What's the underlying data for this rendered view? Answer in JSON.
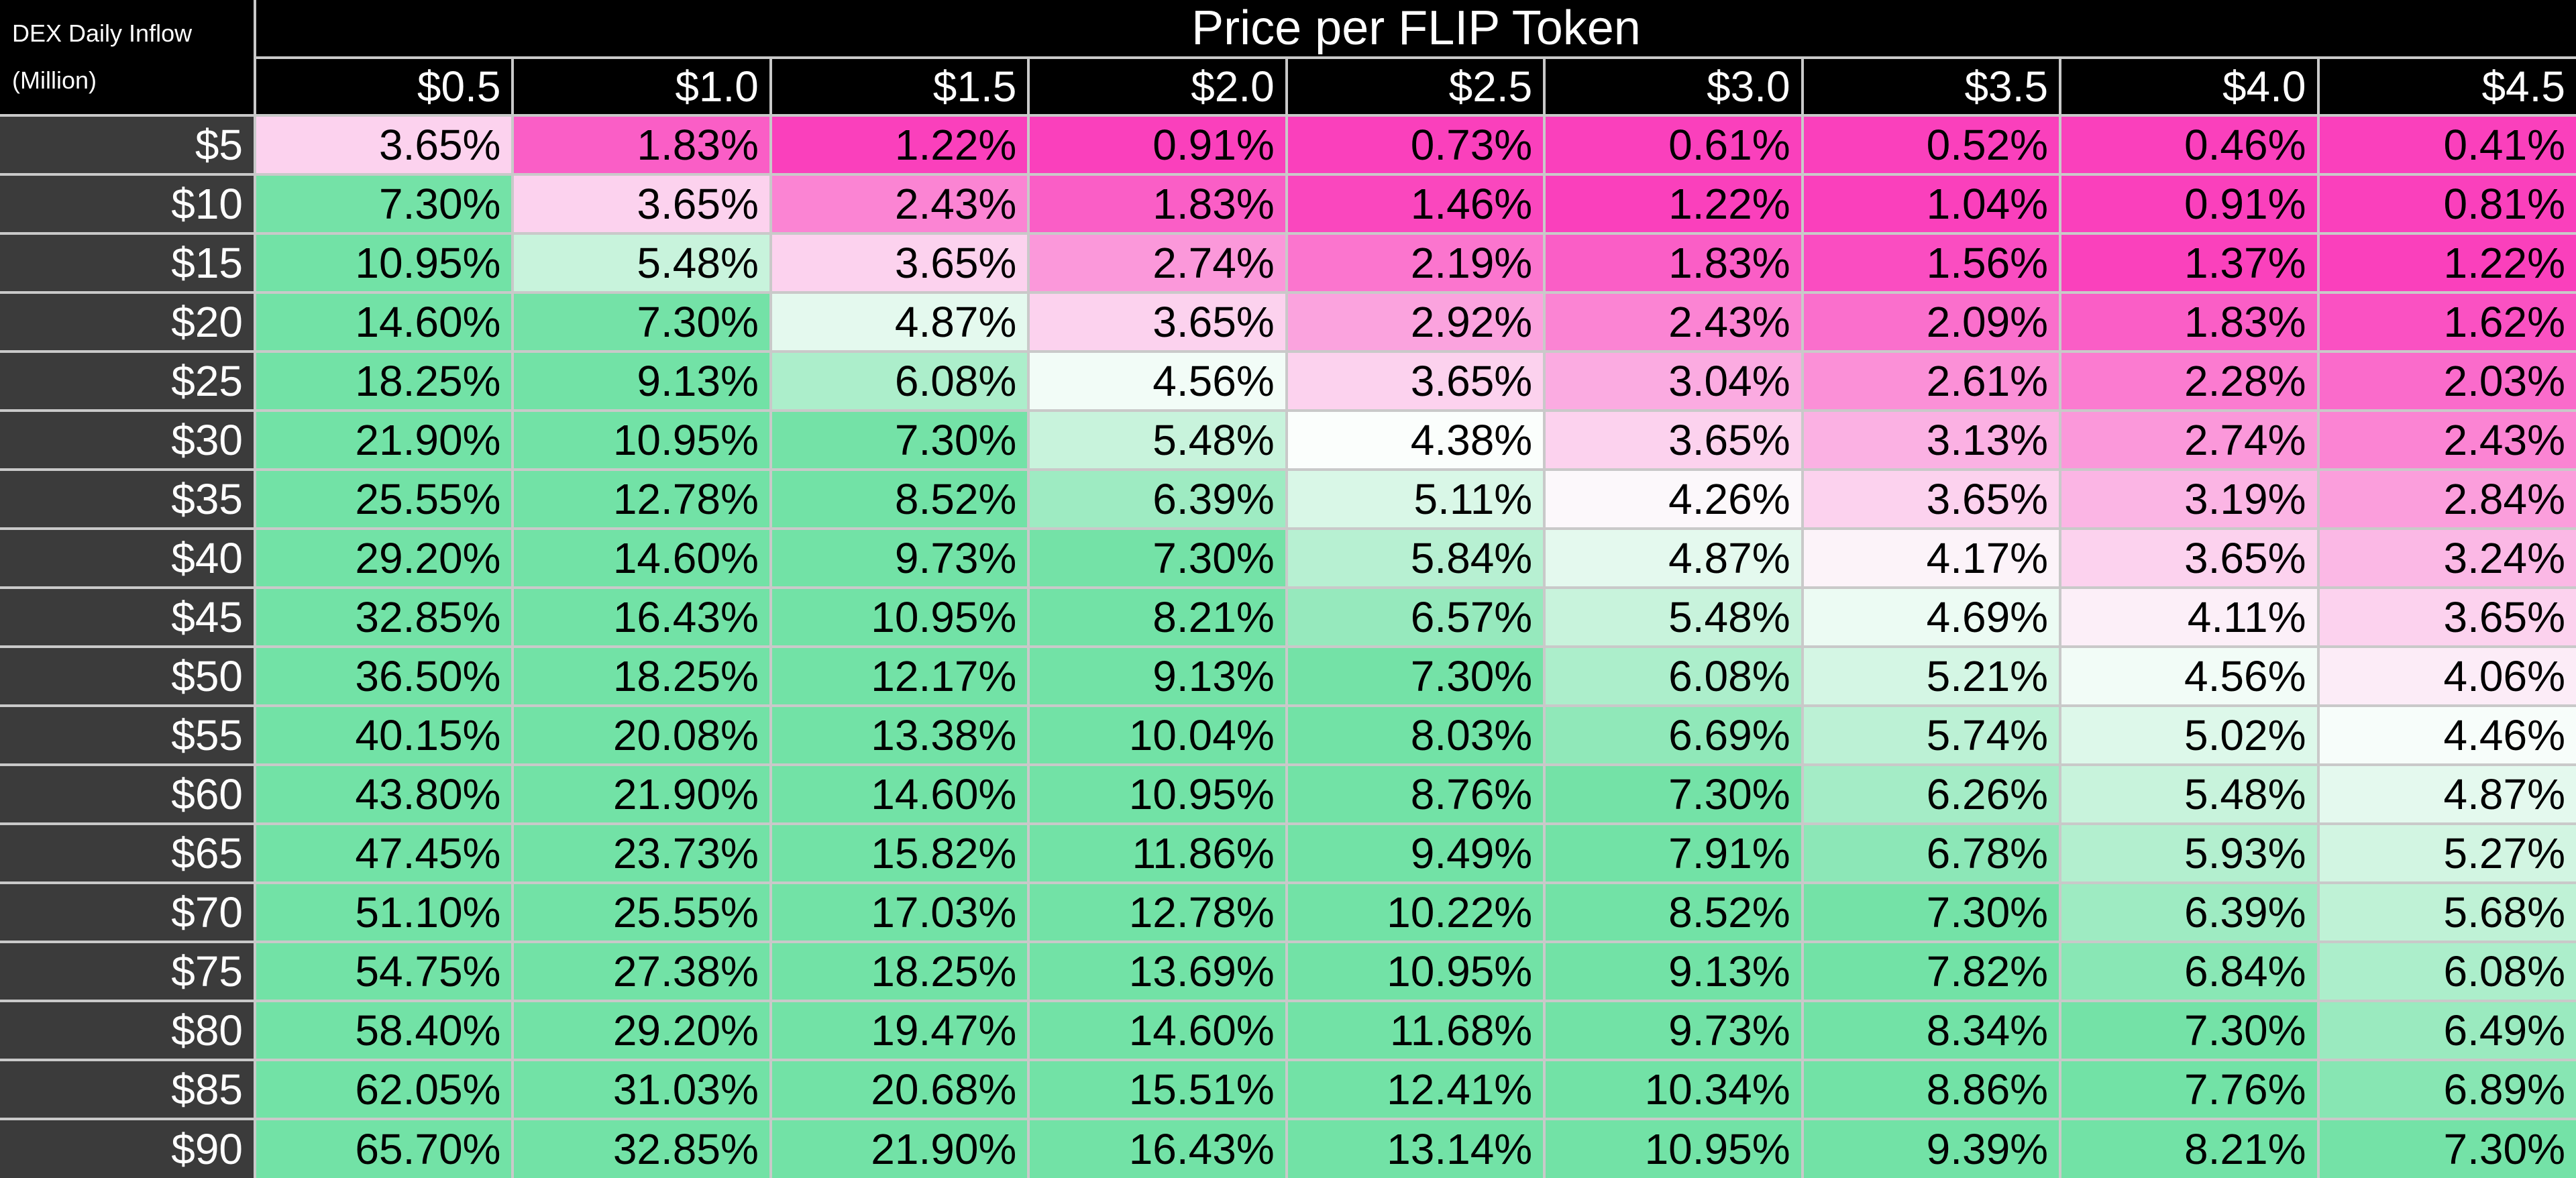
{
  "header": {
    "corner_label_line1": "DEX Daily Inflow",
    "corner_label_line2": "(Million)",
    "title": "Price per FLIP Token"
  },
  "chart_data": {
    "type": "heatmap",
    "title": "Price per FLIP Token",
    "row_axis_label": "DEX Daily Inflow (Million)",
    "row_labels": [
      "$5",
      "$10",
      "$15",
      "$20",
      "$25",
      "$30",
      "$35",
      "$40",
      "$45",
      "$50",
      "$55",
      "$60",
      "$65",
      "$70",
      "$75",
      "$80",
      "$85",
      "$90"
    ],
    "column_labels": [
      "$0.5",
      "$1.0",
      "$1.5",
      "$2.0",
      "$2.5",
      "$3.0",
      "$3.5",
      "$4.0",
      "$4.5"
    ],
    "value_format": "0.00%",
    "values_percent": [
      [
        3.65,
        1.83,
        1.22,
        0.91,
        0.73,
        0.61,
        0.52,
        0.46,
        0.41
      ],
      [
        7.3,
        3.65,
        2.43,
        1.83,
        1.46,
        1.22,
        1.04,
        0.91,
        0.81
      ],
      [
        10.95,
        5.48,
        3.65,
        2.74,
        2.19,
        1.83,
        1.56,
        1.37,
        1.22
      ],
      [
        14.6,
        7.3,
        4.87,
        3.65,
        2.92,
        2.43,
        2.09,
        1.83,
        1.62
      ],
      [
        18.25,
        9.13,
        6.08,
        4.56,
        3.65,
        3.04,
        2.61,
        2.28,
        2.03
      ],
      [
        21.9,
        10.95,
        7.3,
        5.48,
        4.38,
        3.65,
        3.13,
        2.74,
        2.43
      ],
      [
        25.55,
        12.78,
        8.52,
        6.39,
        5.11,
        4.26,
        3.65,
        3.19,
        2.84
      ],
      [
        29.2,
        14.6,
        9.73,
        7.3,
        5.84,
        4.87,
        4.17,
        3.65,
        3.24
      ],
      [
        32.85,
        16.43,
        10.95,
        8.21,
        6.57,
        5.48,
        4.69,
        4.11,
        3.65
      ],
      [
        36.5,
        18.25,
        12.17,
        9.13,
        7.3,
        6.08,
        5.21,
        4.56,
        4.06
      ],
      [
        40.15,
        20.08,
        13.38,
        10.04,
        8.03,
        6.69,
        5.74,
        5.02,
        4.46
      ],
      [
        43.8,
        21.9,
        14.6,
        10.95,
        8.76,
        7.3,
        6.26,
        5.48,
        4.87
      ],
      [
        47.45,
        23.73,
        15.82,
        11.86,
        9.49,
        7.91,
        6.78,
        5.93,
        5.27
      ],
      [
        51.1,
        25.55,
        17.03,
        12.78,
        10.22,
        8.52,
        7.3,
        6.39,
        5.68
      ],
      [
        54.75,
        27.38,
        18.25,
        13.69,
        10.95,
        9.13,
        7.82,
        6.84,
        6.08
      ],
      [
        58.4,
        29.2,
        19.47,
        14.6,
        11.68,
        9.73,
        8.34,
        7.3,
        6.49
      ],
      [
        62.05,
        31.03,
        20.68,
        15.51,
        12.41,
        10.34,
        8.86,
        7.76,
        6.89
      ],
      [
        65.7,
        32.85,
        21.9,
        16.43,
        13.14,
        10.95,
        9.39,
        8.21,
        7.3
      ]
    ],
    "color_scale": {
      "low_color": "#FA40BC",
      "mid_color": "#FCFEFD",
      "high_color": "#72E2A6",
      "center_value": 4.35,
      "half_range": 3.0
    },
    "colors": {
      "header_bg": "#000000",
      "row_header_bg": "#3B3B3B",
      "header_text": "#FFFFFF",
      "cell_text": "#000000",
      "grid_line": "#C9C9C9"
    },
    "legend": "none",
    "grid": true
  }
}
